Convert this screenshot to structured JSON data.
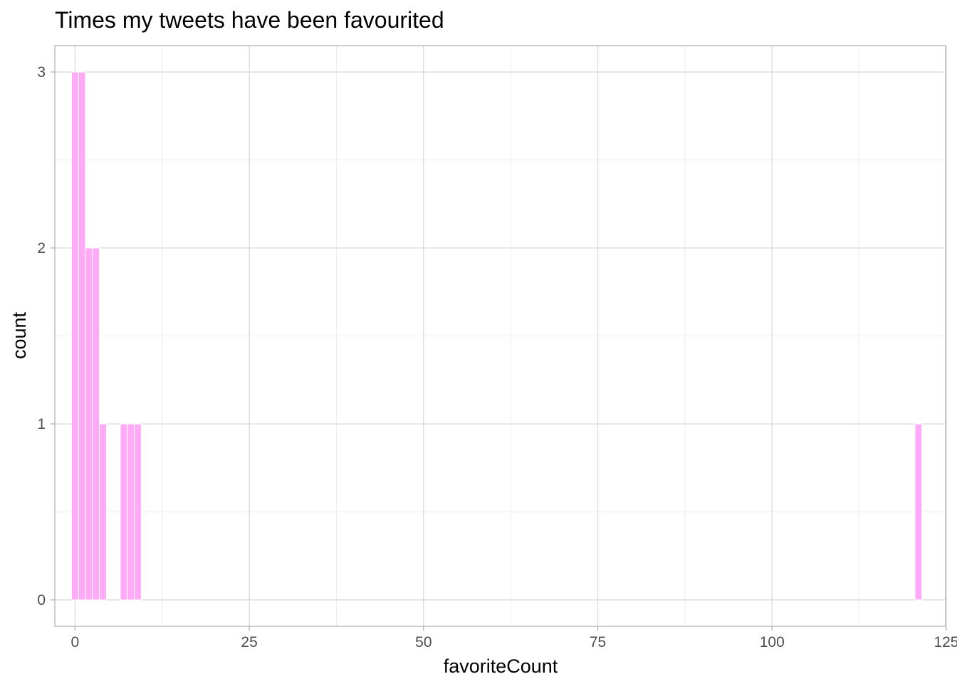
{
  "chart_data": {
    "type": "bar",
    "title": "Times my tweets have been favourited",
    "xlabel": "favoriteCount",
    "ylabel": "count",
    "xlim": [
      -2.9,
      124.9
    ],
    "ylim": [
      -0.15,
      3.15
    ],
    "x_ticks": [
      {
        "value": 0,
        "label": "0"
      },
      {
        "value": 25,
        "label": "25"
      },
      {
        "value": 50,
        "label": "50"
      },
      {
        "value": 75,
        "label": "75"
      },
      {
        "value": 100,
        "label": "100"
      },
      {
        "value": 125,
        "label": "125"
      }
    ],
    "y_ticks": [
      {
        "value": 0,
        "label": "0"
      },
      {
        "value": 1,
        "label": "1"
      },
      {
        "value": 2,
        "label": "2"
      },
      {
        "value": 3,
        "label": "3"
      }
    ],
    "bin_width": 1,
    "x": [
      0,
      1,
      2,
      3,
      4,
      7,
      8,
      9,
      121
    ],
    "values": [
      3,
      3,
      2,
      2,
      1,
      1,
      1,
      1,
      1
    ],
    "bar_color": "#ffaaf6",
    "bar_outline": "#ffffff",
    "grid": true,
    "legend": "none"
  },
  "theme": {
    "panel_border": "#b3b3b3",
    "grid_major": "#d9d9d9",
    "grid_minor": "#ececec",
    "tick_color": "#b3b3b3"
  }
}
